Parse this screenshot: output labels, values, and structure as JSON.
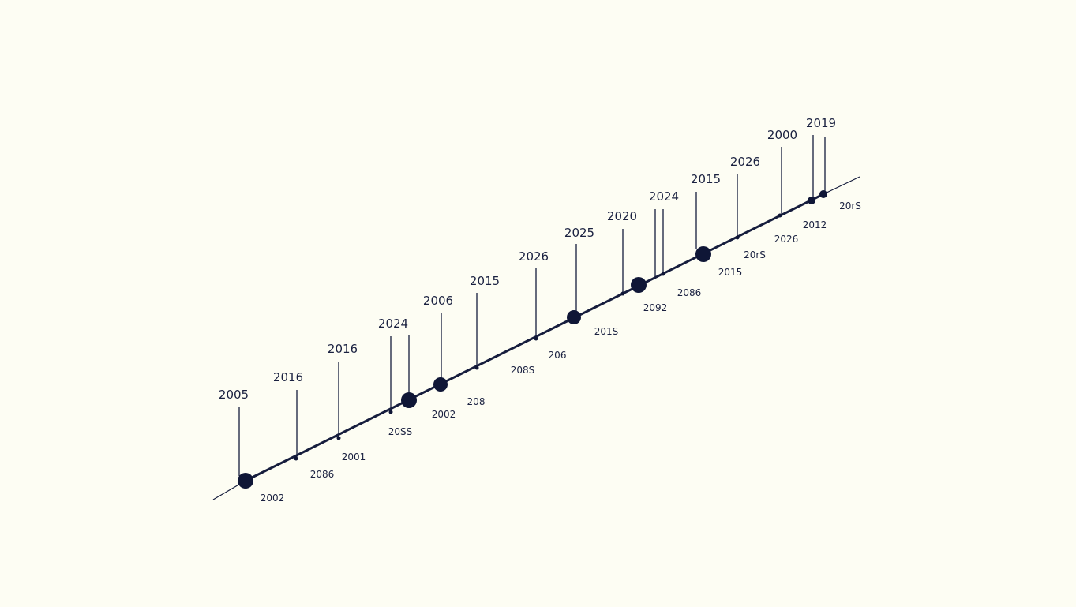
{
  "colors": {
    "background": "#fdfdf3",
    "line": "#161d3d",
    "marker": "#0f1636",
    "text": "#1a2140"
  },
  "events": [
    {
      "top_label": "2005",
      "bottom_label": "2002",
      "marker": "large"
    },
    {
      "top_label": "2016",
      "bottom_label": "2086",
      "marker": "tick"
    },
    {
      "top_label": "2016",
      "bottom_label": "2001",
      "marker": "tick"
    },
    {
      "top_label": "2024",
      "bottom_label": "20SS",
      "marker": "tick"
    },
    {
      "top_label": "",
      "bottom_label": "",
      "marker": "large"
    },
    {
      "top_label": "2006",
      "bottom_label": "2002",
      "marker": "medium"
    },
    {
      "top_label": "2015",
      "bottom_label": "208",
      "marker": "tick"
    },
    {
      "top_label": "2026",
      "bottom_label": "208S",
      "marker": "tick"
    },
    {
      "top_label": "2025",
      "bottom_label": "206",
      "marker": "medium"
    },
    {
      "top_label": "2020",
      "bottom_label": "201S",
      "marker": "tick"
    },
    {
      "top_label": "2024",
      "bottom_label": "2092",
      "marker": "large"
    },
    {
      "top_label": "",
      "bottom_label": "2086",
      "marker": "tick"
    },
    {
      "top_label": "2015",
      "bottom_label": "2015",
      "marker": "large"
    },
    {
      "top_label": "2026",
      "bottom_label": "20rS",
      "marker": "tick"
    },
    {
      "top_label": "2000",
      "bottom_label": "2026",
      "marker": "tick"
    },
    {
      "top_label": "2019",
      "bottom_label": "2012",
      "marker": "small"
    },
    {
      "top_label": "",
      "bottom_label": "20rS",
      "marker": "small"
    }
  ]
}
